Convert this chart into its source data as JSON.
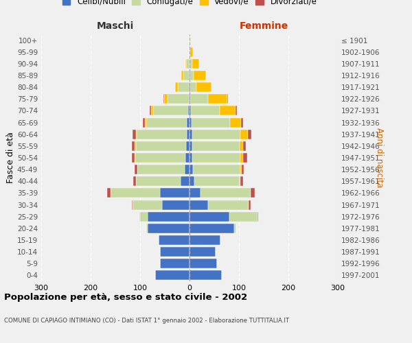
{
  "age_groups": [
    "0-4",
    "5-9",
    "10-14",
    "15-19",
    "20-24",
    "25-29",
    "30-34",
    "35-39",
    "40-44",
    "45-49",
    "50-54",
    "55-59",
    "60-64",
    "65-69",
    "70-74",
    "75-79",
    "80-84",
    "85-89",
    "90-94",
    "95-99",
    "100+"
  ],
  "birth_years": [
    "1997-2001",
    "1992-1996",
    "1987-1991",
    "1982-1986",
    "1977-1981",
    "1972-1976",
    "1967-1971",
    "1962-1966",
    "1957-1961",
    "1952-1956",
    "1947-1951",
    "1942-1946",
    "1937-1941",
    "1932-1936",
    "1927-1931",
    "1922-1926",
    "1917-1921",
    "1912-1916",
    "1907-1911",
    "1902-1906",
    "≤ 1901"
  ],
  "males_celibi": [
    70,
    60,
    60,
    62,
    85,
    85,
    55,
    60,
    18,
    10,
    8,
    7,
    5,
    5,
    3,
    2,
    2,
    0,
    0,
    0,
    0
  ],
  "males_coniugati": [
    0,
    0,
    0,
    0,
    2,
    15,
    60,
    100,
    90,
    96,
    102,
    102,
    102,
    82,
    70,
    42,
    22,
    12,
    7,
    2,
    0
  ],
  "males_vedovi": [
    0,
    0,
    0,
    0,
    0,
    1,
    0,
    0,
    0,
    0,
    1,
    2,
    2,
    3,
    5,
    8,
    5,
    4,
    2,
    0,
    0
  ],
  "males_divorziati": [
    0,
    0,
    0,
    0,
    0,
    1,
    2,
    7,
    6,
    5,
    5,
    5,
    6,
    4,
    3,
    1,
    0,
    0,
    0,
    0,
    0
  ],
  "females_nubili": [
    65,
    55,
    53,
    63,
    90,
    80,
    38,
    22,
    10,
    7,
    6,
    5,
    5,
    4,
    3,
    2,
    2,
    1,
    0,
    0,
    0
  ],
  "females_coniugate": [
    0,
    0,
    0,
    0,
    5,
    58,
    82,
    102,
    92,
    96,
    97,
    97,
    98,
    78,
    58,
    35,
    12,
    8,
    5,
    2,
    0
  ],
  "females_vedove": [
    0,
    0,
    0,
    0,
    0,
    0,
    0,
    0,
    1,
    2,
    6,
    6,
    15,
    22,
    32,
    40,
    30,
    25,
    15,
    5,
    1
  ],
  "females_divorziate": [
    0,
    0,
    0,
    0,
    0,
    1,
    4,
    8,
    5,
    5,
    7,
    6,
    7,
    4,
    3,
    1,
    0,
    0,
    0,
    0,
    0
  ],
  "color_celibi": "#4472c4",
  "color_coniugati": "#c5d9a0",
  "color_vedovi": "#ffc000",
  "color_divorziati": "#c0504d",
  "title": "Popolazione per età, sesso e stato civile - 2002",
  "subtitle": "COMUNE DI CAPIAGO INTIMIANO (CO) - Dati ISTAT 1° gennaio 2002 - Elaborazione TUTTITALIA.IT",
  "label_maschi": "Maschi",
  "label_femmine": "Femmine",
  "ylabel_left": "Fasce di età",
  "ylabel_right": "Anni di nascita",
  "xlim": 300,
  "background_color": "#f0f0f0",
  "legend_labels": [
    "Celibi/Nubili",
    "Coniugati/e",
    "Vedovi/e",
    "Divorziati/e"
  ]
}
